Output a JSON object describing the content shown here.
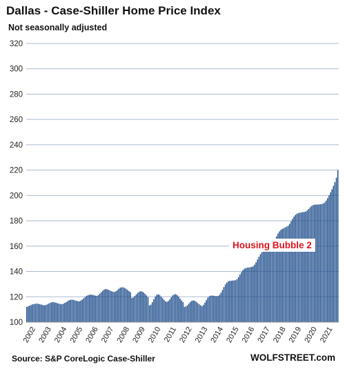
{
  "chart_data": {
    "type": "bar",
    "title": "Dallas - Case-Shiller Home Price Index",
    "subtitle": "Not seasonally adjusted",
    "xlabel": "",
    "ylabel": "",
    "ylim": [
      100,
      320
    ],
    "yticks": [
      100,
      120,
      140,
      160,
      180,
      200,
      220,
      240,
      260,
      280,
      300,
      320
    ],
    "x_tick_labels": [
      "2002",
      "2003",
      "2004",
      "2005",
      "2006",
      "2007",
      "2008",
      "2009",
      "2010",
      "2011",
      "2012",
      "2013",
      "2014",
      "2015",
      "2016",
      "2017",
      "2018",
      "2019",
      "2020",
      "2021"
    ],
    "grid": true,
    "bar_color": "#1f4e8c",
    "annotation": "Housing Bubble 2",
    "annotation_color": "#e0141e",
    "source": "Source: S&P CoreLogic Case-Shiller",
    "brand": "WOLFSTREET.com",
    "series": [
      {
        "values": [
          112,
          112.5,
          113,
          113.5,
          114,
          114.3,
          114.5,
          114.6,
          114.4,
          114.1,
          113.8,
          113.5,
          113.2,
          113.5,
          114,
          114.6,
          115.2,
          115.6,
          115.8,
          115.6,
          115.3,
          114.9,
          114.6,
          114.3,
          114.1,
          114.5,
          115.1,
          115.8,
          116.6,
          117.2,
          117.6,
          117.7,
          117.6,
          117.2,
          116.8,
          116.5,
          116.4,
          117,
          117.8,
          118.8,
          119.8,
          120.7,
          121.3,
          121.6,
          121.7,
          121.5,
          121.2,
          120.9,
          120.7,
          121.4,
          122.4,
          123.6,
          124.8,
          125.7,
          126.1,
          125.9,
          125.5,
          124.9,
          124.4,
          124,
          123.8,
          124.3,
          125.2,
          126.3,
          127.1,
          127.5,
          127.4,
          127,
          126.3,
          125.4,
          124.5,
          123.6,
          119,
          119.5,
          120.6,
          121.9,
          123.1,
          124,
          124.3,
          124.1,
          123.4,
          122.3,
          121,
          119.7,
          113.2,
          113.8,
          115.7,
          118,
          120.1,
          121.5,
          122,
          121.4,
          120.2,
          118.9,
          117.5,
          116.3,
          116,
          116.7,
          118.1,
          119.7,
          121.1,
          121.9,
          122,
          121.3,
          120.1,
          118.6,
          117.1,
          115.8,
          112,
          112.4,
          113.3,
          114.6,
          115.9,
          116.8,
          117.1,
          116.8,
          116.1,
          115.1,
          114.1,
          113.3,
          112.5,
          113.6,
          115.4,
          117.4,
          119.2,
          120.4,
          120.9,
          120.9,
          120.8,
          120.6,
          120.5,
          120.6,
          121.5,
          123.2,
          125.4,
          127.7,
          129.7,
          131.2,
          132.1,
          132.5,
          132.7,
          132.8,
          132.9,
          133.1,
          134,
          135.6,
          137.5,
          139.4,
          141,
          142.1,
          142.7,
          143,
          143.1,
          143.3,
          143.6,
          144.1,
          145.4,
          147.2,
          149.4,
          151.6,
          153.6,
          155.2,
          156.3,
          157,
          157.5,
          157.9,
          158.3,
          158.8,
          160.2,
          162.4,
          165,
          167.6,
          169.9,
          171.6,
          172.8,
          173.6,
          174.2,
          174.8,
          175.4,
          176.1,
          177.6,
          179.5,
          181.5,
          183.3,
          184.7,
          185.6,
          186.1,
          186.4,
          186.6,
          186.8,
          187,
          187.3,
          188.1,
          189.3,
          190.6,
          191.7,
          192.4,
          192.7,
          192.8,
          192.8,
          192.9,
          193,
          193.2,
          193.6,
          194.5,
          196,
          197.9,
          200.1,
          202.4,
          204.9,
          207.6,
          210.5,
          214,
          220
        ]
      }
    ]
  }
}
